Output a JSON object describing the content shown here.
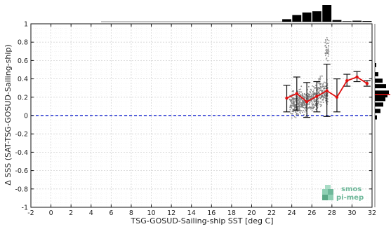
{
  "chart_data": {
    "type": "scatter",
    "title": "",
    "xlabel": "TSG-GOSUD-Sailing-ship SST [deg C]",
    "ylabel": "Δ SSS (SAT-TSG-GOSUD-Sailing-ship)",
    "xlim": [
      -2,
      32
    ],
    "ylim": [
      -1,
      1
    ],
    "x_ticks": [
      -2,
      0,
      2,
      4,
      6,
      8,
      10,
      12,
      14,
      16,
      18,
      20,
      22,
      24,
      26,
      28,
      30,
      32
    ],
    "y_ticks": [
      -1,
      -0.8,
      -0.6,
      -0.4,
      -0.2,
      0,
      0.2,
      0.4,
      0.6,
      0.8,
      1
    ],
    "grid": true,
    "reference_line": {
      "y": 0,
      "color": "#1f2fd0",
      "style": "dashed"
    },
    "mean_series": {
      "color": "#e01010",
      "x": [
        23.5,
        24.5,
        25.5,
        26.5,
        27.5,
        28.5,
        29.5,
        30.5,
        31.5
      ],
      "y": [
        0.19,
        0.24,
        0.15,
        0.21,
        0.27,
        0.2,
        0.38,
        0.42,
        0.35
      ],
      "upper": [
        0.33,
        0.42,
        0.36,
        0.37,
        0.56,
        0.4,
        0.45,
        0.48,
        0.38
      ],
      "lower": [
        0.04,
        0.06,
        -0.02,
        0.04,
        -0.01,
        0.04,
        0.32,
        0.37,
        0.32
      ]
    },
    "scatter_points": {
      "color": "#7a7a7a",
      "clusters": [
        {
          "x_range": [
            23.8,
            24.6
          ],
          "y_center": 0.12,
          "y_spread": 0.22,
          "n": 140
        },
        {
          "x_range": [
            24.6,
            25.6
          ],
          "y_center": 0.15,
          "y_spread": 0.22,
          "n": 180
        },
        {
          "x_range": [
            25.6,
            26.6
          ],
          "y_center": 0.18,
          "y_spread": 0.22,
          "n": 180
        },
        {
          "x_range": [
            26.6,
            27.6
          ],
          "y_center": 0.25,
          "y_spread": 0.25,
          "n": 170
        },
        {
          "x_range": [
            27.3,
            27.7
          ],
          "y_center": 0.72,
          "y_spread": 0.18,
          "n": 40
        }
      ]
    },
    "top_histogram": {
      "bin_centers": [
        23.5,
        24.5,
        25.5,
        26.5,
        27.5,
        28.5,
        29.5,
        30.5,
        31.5
      ],
      "counts": [
        0.15,
        0.4,
        0.55,
        0.62,
        1.0,
        0.1,
        0.03,
        0.06,
        0.04
      ]
    },
    "right_histogram": {
      "bin_centers": [
        0.55,
        0.45,
        0.38,
        0.32,
        0.25,
        0.22,
        0.18,
        0.12,
        0.05,
        -0.02
      ],
      "counts": [
        0.1,
        0.25,
        0.55,
        0.8,
        1.0,
        0.9,
        0.75,
        0.6,
        0.4,
        0.15
      ],
      "mean_marker_y": 0.23,
      "mean_marker_color": "#e01010"
    }
  },
  "logo": {
    "line1": "smos",
    "line2": "pi-mep"
  }
}
